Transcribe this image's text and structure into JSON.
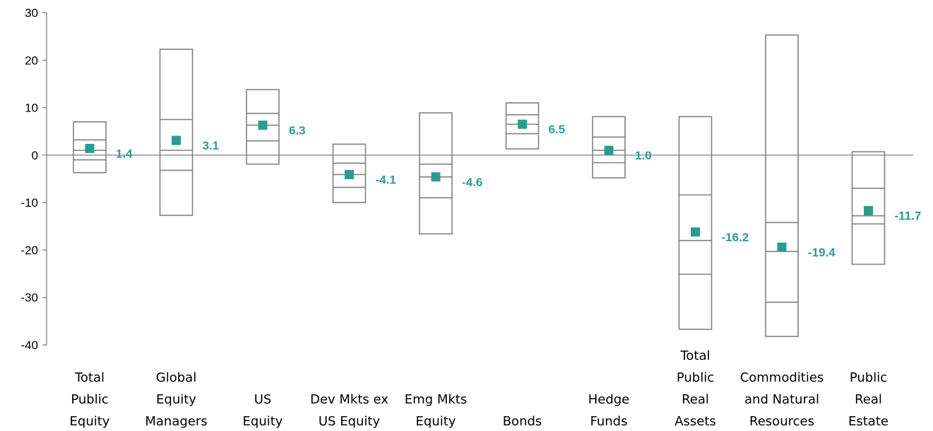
{
  "chart_data": {
    "type": "box",
    "ylim": [
      -40,
      30
    ],
    "yticks": [
      "30",
      "20",
      "10",
      "0",
      "-10",
      "-20",
      "-30",
      "-40"
    ],
    "grid": false,
    "colors": {
      "box": "#808080",
      "marker": "#2a9d8f",
      "axis": "#808080"
    },
    "categories": [
      {
        "lines": [
          "Total",
          "Public",
          "Equity"
        ],
        "max": 7.0,
        "q3": 3.2,
        "median": 1.0,
        "q1": -1.0,
        "min": -3.7,
        "value": 1.4,
        "label": "1.4"
      },
      {
        "lines": [
          "Global",
          "Equity",
          "Managers"
        ],
        "max": 22.3,
        "q3": 7.5,
        "median": 1.0,
        "q1": -3.2,
        "min": -12.7,
        "value": 3.1,
        "label": "3.1"
      },
      {
        "lines": [
          "US",
          "Equity"
        ],
        "max": 13.8,
        "q3": 8.8,
        "median": 6.3,
        "q1": 3.0,
        "min": -1.9,
        "value": 6.3,
        "label": "6.3"
      },
      {
        "lines": [
          "Dev Mkts ex",
          "US Equity"
        ],
        "max": 2.3,
        "q3": -1.7,
        "median": -4.1,
        "q1": -6.8,
        "min": -10.0,
        "value": -4.1,
        "label": "-4.1"
      },
      {
        "lines": [
          "Emg Mkts",
          "Equity"
        ],
        "max": 8.9,
        "q3": -1.9,
        "median": -4.6,
        "q1": -9.0,
        "min": -16.6,
        "value": -4.6,
        "label": "-4.6"
      },
      {
        "lines": [
          "Bonds"
        ],
        "max": 11.0,
        "q3": 8.5,
        "median": 6.5,
        "q1": 4.5,
        "min": 1.3,
        "value": 6.5,
        "label": "6.5"
      },
      {
        "lines": [
          "Hedge",
          "Funds"
        ],
        "max": 8.1,
        "q3": 3.8,
        "median": 1.0,
        "q1": -1.6,
        "min": -4.8,
        "value": 1.0,
        "label": "1.0"
      },
      {
        "lines": [
          "Total",
          "Public",
          "Real",
          "Assets"
        ],
        "max": 8.1,
        "q3": -8.4,
        "median": -18.0,
        "q1": -25.1,
        "min": -36.7,
        "value": -16.2,
        "label": "-16.2"
      },
      {
        "lines": [
          "Commodities",
          "and Natural",
          "Resources"
        ],
        "max": 25.3,
        "q3": -14.2,
        "median": -20.3,
        "q1": -31.0,
        "min": -38.2,
        "value": -19.4,
        "label": "-19.4"
      },
      {
        "lines": [
          "Public",
          "Real",
          "Estate"
        ],
        "max": 0.7,
        "q3": -7.0,
        "median": -12.8,
        "q1": -14.5,
        "min": -23.0,
        "value": -11.7,
        "label": "-11.7"
      }
    ]
  }
}
